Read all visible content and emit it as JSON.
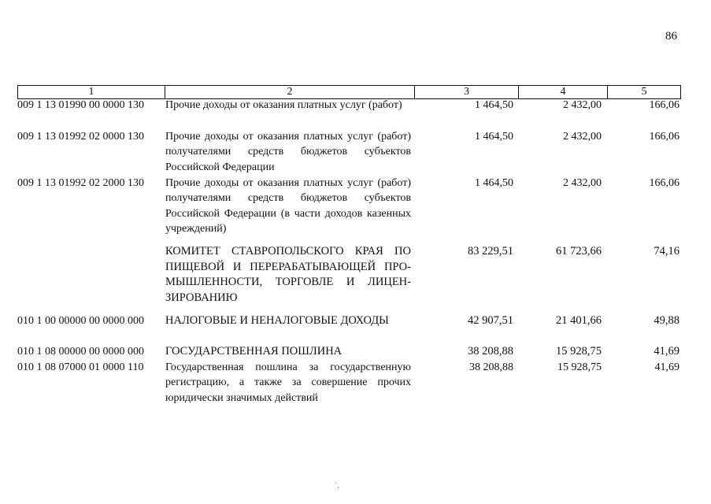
{
  "page_number": "86",
  "table": {
    "headers": [
      "1",
      "2",
      "3",
      "4",
      "5"
    ],
    "rows": [
      {
        "code": "009 1 13 01990 00 0000 130",
        "description": "Прочие доходы от оказания платных услуг (работ)",
        "col3": "1 464,50",
        "col4": "2 432,00",
        "col5": "166,06"
      },
      {
        "code": "009 1 13 01992 02 0000 130",
        "description": "Прочие доходы от оказания платных услуг (работ) получателями средств бюджетов субъектов Российской Федерации",
        "col3": "1 464,50",
        "col4": "2 432,00",
        "col5": "166,06"
      },
      {
        "code": "009 1 13 01992 02 2000 130",
        "description": "Прочие доходы от оказания платных услуг (работ) получателями средств бюджетов субъектов Российской Федерации (в части доходов казенных учреждений)",
        "col3": "1 464,50",
        "col4": "2 432,00",
        "col5": "166,06"
      },
      {
        "code": "",
        "description": "КОМИТЕТ СТАВРОПОЛЬСКОГО КРАЯ ПО ПИЩЕВОЙ И ПЕРЕРАБАТЫВАЮЩЕЙ ПРО­МЫШЛЕННОСТИ, ТОРГОВЛЕ И ЛИЦЕН­ЗИРОВАНИЮ",
        "col3": "83 229,51",
        "col4": "61 723,66",
        "col5": "74,16"
      },
      {
        "code": "010 1 00 00000 00 0000 000",
        "description": "НАЛОГОВЫЕ И НЕНАЛОГОВЫЕ ДОХОДЫ",
        "col3": "42 907,51",
        "col4": "21 401,66",
        "col5": "49,88"
      },
      {
        "code": "010 1 08 00000 00 0000 000",
        "description": "ГОСУДАРСТВЕННАЯ ПОШЛИНА",
        "col3": "38 208,88",
        "col4": "15 928,75",
        "col5": "41,69"
      },
      {
        "code": "010 1 08 07000 01 0000 110",
        "description": "Государственная пошлина за государственную регистрацию, а также за совершение прочих юридически значимых действий",
        "col3": "38 208,88",
        "col4": "15 928,75",
        "col5": "41,69"
      }
    ]
  }
}
